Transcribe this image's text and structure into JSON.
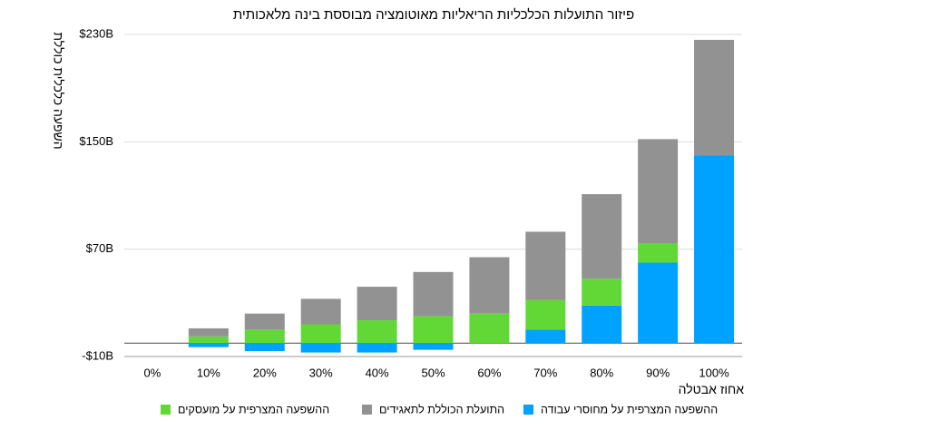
{
  "chart_data": {
    "type": "bar",
    "stacked": true,
    "title": "פיזור התועלות הכלכליות הריאליות מאוטומציה מבוססת בינה מלאכותית",
    "xlabel": "אחוז אבטלה",
    "ylabel": "השפעה כלכלית כוללת",
    "categories": [
      "0%",
      "10%",
      "20%",
      "30%",
      "40%",
      "50%",
      "60%",
      "70%",
      "80%",
      "90%",
      "100%"
    ],
    "yticks": [
      "$230B",
      "$150B",
      "$70B",
      "-$10B"
    ],
    "ytick_values": [
      230,
      150,
      70,
      -10
    ],
    "ylim": [
      -10,
      230
    ],
    "grid": true,
    "legend_position": "bottom",
    "series": [
      {
        "name": "ההשפעה המצרפית על מחוסרי עבודה",
        "color": "#00a2ff",
        "values": [
          0,
          -3,
          -6,
          -7,
          -7,
          -5,
          0,
          10,
          28,
          60,
          140
        ]
      },
      {
        "name": "ההשפעה המצרפית על מועסקים",
        "color": "#61d836",
        "values": [
          0,
          5,
          10,
          14,
          17,
          20,
          22,
          22,
          20,
          14,
          0
        ]
      },
      {
        "name": "התועלת הכוללת לתאגידים",
        "color": "#929292",
        "values": [
          0,
          6,
          12,
          19,
          25,
          33,
          42,
          51,
          63,
          78,
          86
        ]
      }
    ],
    "legend_order": [
      1,
      2,
      0
    ]
  }
}
